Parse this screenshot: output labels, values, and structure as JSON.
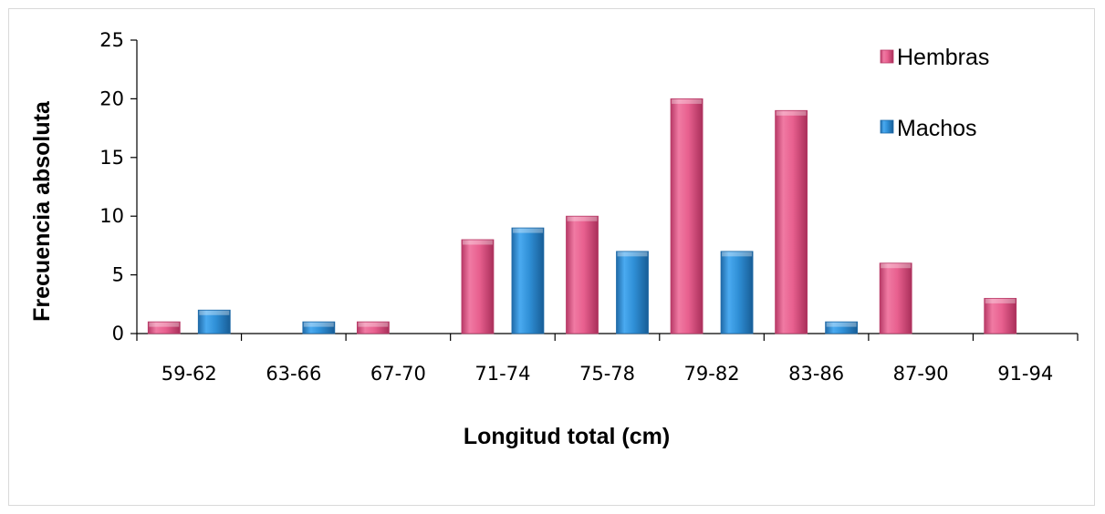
{
  "chart_data": {
    "type": "bar",
    "categories": [
      "59-62",
      "63-66",
      "67-70",
      "71-74",
      "75-78",
      "79-82",
      "83-86",
      "87-90",
      "91-94"
    ],
    "series": [
      {
        "name": "Hembras",
        "values": [
          1,
          0,
          1,
          8,
          10,
          20,
          19,
          6,
          3
        ],
        "color": "#e8608f"
      },
      {
        "name": "Machos",
        "values": [
          2,
          1,
          0,
          9,
          7,
          7,
          1,
          0,
          0
        ],
        "color": "#2f8fd6"
      }
    ],
    "xlabel": "Longitud total (cm)",
    "ylabel": "Frecuencia absoluta",
    "ylim": [
      0,
      25
    ],
    "yticks": [
      0,
      5,
      10,
      15,
      20,
      25
    ],
    "grid": false,
    "legend_position": "top-right"
  }
}
